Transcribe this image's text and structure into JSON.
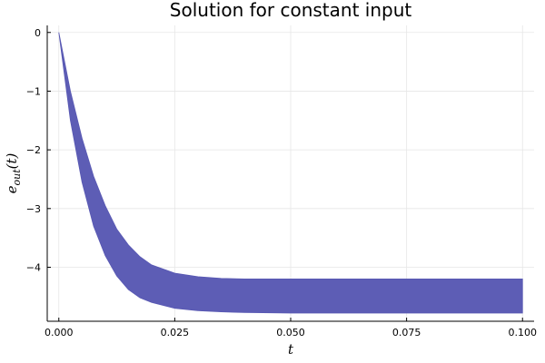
{
  "chart_data": {
    "type": "area",
    "title": "Solution for constant input",
    "xlabel": "t",
    "ylabel": "e_out(t)",
    "xlim": [
      -0.0025,
      0.1025
    ],
    "ylim": [
      -4.92,
      0.12
    ],
    "xticks": [
      0.0,
      0.025,
      0.05,
      0.075,
      0.1
    ],
    "xtick_labels": [
      "0.000",
      "0.025",
      "0.050",
      "0.075",
      "0.100"
    ],
    "yticks": [
      0,
      -1,
      -2,
      -3,
      -4
    ],
    "ytick_labels": [
      "0",
      "−1",
      "−2",
      "−3",
      "−4"
    ],
    "grid": true,
    "legend": "none",
    "series": [
      {
        "color": "#5858b3",
        "x": [
          0.0,
          0.0025,
          0.005,
          0.0075,
          0.01,
          0.0125,
          0.015,
          0.0175,
          0.02,
          0.025,
          0.03,
          0.035,
          0.04,
          0.05,
          0.06,
          0.07,
          0.08,
          0.09,
          0.1
        ],
        "upper": [
          0.0,
          -1.0,
          -1.8,
          -2.45,
          -2.95,
          -3.35,
          -3.62,
          -3.82,
          -3.96,
          -4.1,
          -4.16,
          -4.19,
          -4.2,
          -4.2,
          -4.2,
          -4.2,
          -4.2,
          -4.2,
          -4.2
        ],
        "lower": [
          0.0,
          -1.5,
          -2.55,
          -3.3,
          -3.8,
          -4.15,
          -4.38,
          -4.52,
          -4.6,
          -4.7,
          -4.74,
          -4.76,
          -4.77,
          -4.78,
          -4.78,
          -4.78,
          -4.78,
          -4.78,
          -4.78
        ]
      }
    ]
  }
}
